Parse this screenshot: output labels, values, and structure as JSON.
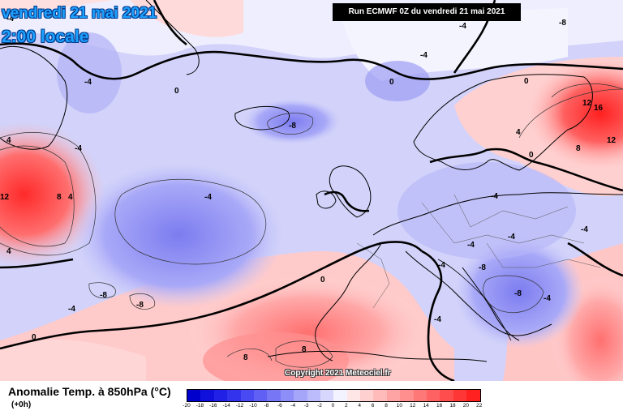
{
  "header": {
    "date": "vendredi 21 mai 2021",
    "time": "2:00 locale",
    "run": "Run ECMWF 0Z du vendredi 21 mai 2021"
  },
  "copyright": "Copyright 2021 Meteociel.fr",
  "legend": {
    "title": "Anomalie Temp. à 850hPa (°C)",
    "subtitle": "(+0h)",
    "ticks": [
      "-20",
      "-18",
      "-16",
      "-14",
      "-12",
      "-10",
      "-8",
      "-6",
      "-4",
      "-3",
      "-2",
      "0",
      "2",
      "4",
      "6",
      "8",
      "10",
      "12",
      "14",
      "16",
      "18",
      "20",
      "22"
    ],
    "colors": [
      "#0000cc",
      "#1010dd",
      "#2020e6",
      "#3333ee",
      "#4a4af2",
      "#6060f4",
      "#7777f6",
      "#8e8ef8",
      "#a5a5fa",
      "#bcbcfc",
      "#d7d7fe",
      "#f3f3ff",
      "#ffe6e6",
      "#ffd0d0",
      "#ffbaba",
      "#ffa4a4",
      "#ff8e8e",
      "#ff7878",
      "#ff6262",
      "#ff4c4c",
      "#ff3636",
      "#ff2020"
    ]
  },
  "contour_labels": [
    "-4",
    "-4",
    "-8",
    "0",
    "0",
    "-4",
    "-8",
    "-4",
    "0",
    "-4",
    "-4",
    "-8",
    "-4",
    "0",
    "0",
    "4",
    "4",
    "4",
    "8",
    "12",
    "12",
    "16",
    "12",
    "8",
    "4",
    "8",
    "8",
    "-4",
    "-4",
    "-4",
    "-4",
    "-4",
    "-8",
    "-8",
    "-4",
    "-4",
    "-8",
    "0"
  ]
}
